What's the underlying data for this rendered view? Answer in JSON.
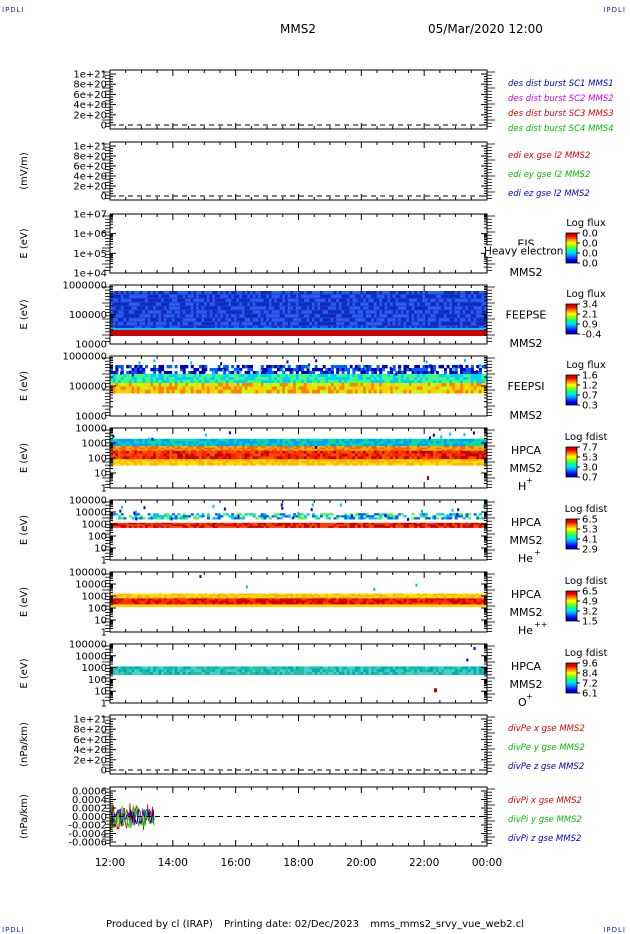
{
  "header": {
    "corner_label": "IPDLI",
    "spacecraft": "MMS2",
    "datetime": "05/Mar/2020 12:00"
  },
  "footer": {
    "produced_by": "Produced by cl (IRAP)",
    "printing_date": "Printing date: 02/Dec/2023",
    "filename": "mms_mms2_srvy_vue_web2.cl"
  },
  "colors": {
    "red": "#e00000",
    "green": "#00c000",
    "blue": "#0000c8",
    "magenta": "#e000e0",
    "spectro_low": "#0000b0",
    "spectro_high": "#c00000"
  },
  "chart_data": [
    {
      "id": "p1",
      "type": "line",
      "ylabel": "",
      "yticks": [
        "0",
        "2e+20",
        "4e+20",
        "6e+20",
        "8e+20",
        "1e+21"
      ],
      "dashed_zero": true,
      "legend": [
        {
          "text": "des dist burst SC1 MMS1",
          "color": "#0000c8"
        },
        {
          "text": "des dist burst SC2 MMS2",
          "color": "#e000e0"
        },
        {
          "text": "des dist burst SC3 MMS3",
          "color": "#e00000"
        },
        {
          "text": "des dist burst SC4 MMS4",
          "color": "#00c000"
        }
      ]
    },
    {
      "id": "p2",
      "type": "line",
      "ylabel": "(mV/m)",
      "yticks": [
        "0",
        "2e+20",
        "4e+20",
        "6e+20",
        "8e+20",
        "1e+21"
      ],
      "dashed_zero": true,
      "legend": [
        {
          "text": "edi ex gse l2 MMS2",
          "color": "#e00000"
        },
        {
          "text": "edi ey gse l2 MMS2",
          "color": "#00c000"
        },
        {
          "text": "edi ez gse l2 MMS2",
          "color": "#0000c8"
        }
      ]
    },
    {
      "id": "p3",
      "type": "heatmap",
      "ylabel": "E (eV)",
      "yticks": [
        "1e+04",
        "1e+05",
        "1e+06",
        "1e+07"
      ],
      "log": true,
      "instrument": "EIS",
      "instrument_note": "Heavy electron te",
      "sc": "MMS2",
      "cbar_title": "Log flux",
      "cbar_ticks": [
        "0.0",
        "0.0",
        "0.0",
        "0.0"
      ],
      "data": "none"
    },
    {
      "id": "p4",
      "type": "heatmap",
      "ylabel": "E (eV)",
      "yticks": [
        "10000",
        "100000",
        "1000000"
      ],
      "log": true,
      "instrument": "FEEPSE",
      "sc": "MMS2",
      "cbar_title": "Log flux",
      "cbar_ticks": [
        "3.4",
        "2.1",
        "0.9",
        "-0.4"
      ]
    },
    {
      "id": "p5",
      "type": "heatmap",
      "ylabel": "E (eV)",
      "yticks": [
        "10000",
        "100000",
        "1000000"
      ],
      "log": true,
      "instrument": "FEEPSI",
      "sc": "MMS2",
      "cbar_title": "Log flux",
      "cbar_ticks": [
        "1.6",
        "1.2",
        "0.7",
        "0.3"
      ]
    },
    {
      "id": "p6",
      "type": "heatmap",
      "ylabel": "E (eV)",
      "yticks": [
        "1",
        "10",
        "100",
        "1000",
        "10000"
      ],
      "log": true,
      "instrument": "HPCA",
      "sc": "MMS2",
      "species": "H",
      "charge": "+",
      "cbar_title": "Log fdist",
      "cbar_ticks": [
        "7.7",
        "5.3",
        "3.0",
        "0.7"
      ]
    },
    {
      "id": "p7",
      "type": "heatmap",
      "ylabel": "E (eV)",
      "yticks": [
        "1",
        "10",
        "100",
        "1000",
        "10000",
        "100000"
      ],
      "log": true,
      "instrument": "HPCA",
      "sc": "MMS2",
      "species": "He",
      "charge": "+",
      "cbar_title": "Log fdist",
      "cbar_ticks": [
        "6.5",
        "5.3",
        "4.1",
        "2.9"
      ]
    },
    {
      "id": "p8",
      "type": "heatmap",
      "ylabel": "E (eV)",
      "yticks": [
        "1",
        "10",
        "100",
        "1000",
        "10000",
        "100000"
      ],
      "log": true,
      "instrument": "HPCA",
      "sc": "MMS2",
      "species": "He",
      "charge": "++",
      "cbar_title": "Log fdist",
      "cbar_ticks": [
        "6.5",
        "4.9",
        "3.2",
        "1.5"
      ]
    },
    {
      "id": "p9",
      "type": "heatmap",
      "ylabel": "E (eV)",
      "yticks": [
        "1",
        "10",
        "100",
        "1000",
        "10000",
        "100000"
      ],
      "log": true,
      "instrument": "HPCA",
      "sc": "MMS2",
      "species": "O",
      "charge": "+",
      "cbar_title": "Log fdist",
      "cbar_ticks": [
        "9.6",
        "8.4",
        "7.2",
        "6.1"
      ]
    },
    {
      "id": "p10",
      "type": "line",
      "ylabel": "(nPa/km)",
      "yticks": [
        "0",
        "2e+20",
        "4e+20",
        "6e+20",
        "8e+20",
        "1e+21"
      ],
      "dashed_zero": true,
      "legend": [
        {
          "text": "divPe x gse MMS2",
          "color": "#e00000"
        },
        {
          "text": "divPe y gse MMS2",
          "color": "#00c000"
        },
        {
          "text": "divPe z gse MMS2",
          "color": "#0000c8"
        }
      ]
    },
    {
      "id": "p11",
      "type": "line",
      "ylabel": "(nPa/km)",
      "yticks": [
        "-0.0006",
        "-0.0004",
        "-0.0002",
        "0.0000",
        "0.0002",
        "0.0004",
        "0.0006"
      ],
      "dashed_zero": true,
      "data_until": "13:25",
      "legend": [
        {
          "text": "divPi x gse MMS2",
          "color": "#e00000"
        },
        {
          "text": "divPi y gse MMS2",
          "color": "#00c000"
        },
        {
          "text": "divPi z gse MMS2",
          "color": "#0000c8"
        }
      ]
    }
  ],
  "x_axis": {
    "ticks": [
      "12:00",
      "14:00",
      "16:00",
      "18:00",
      "20:00",
      "22:00",
      "00:00"
    ],
    "range": [
      "12:00",
      "00:00"
    ]
  }
}
